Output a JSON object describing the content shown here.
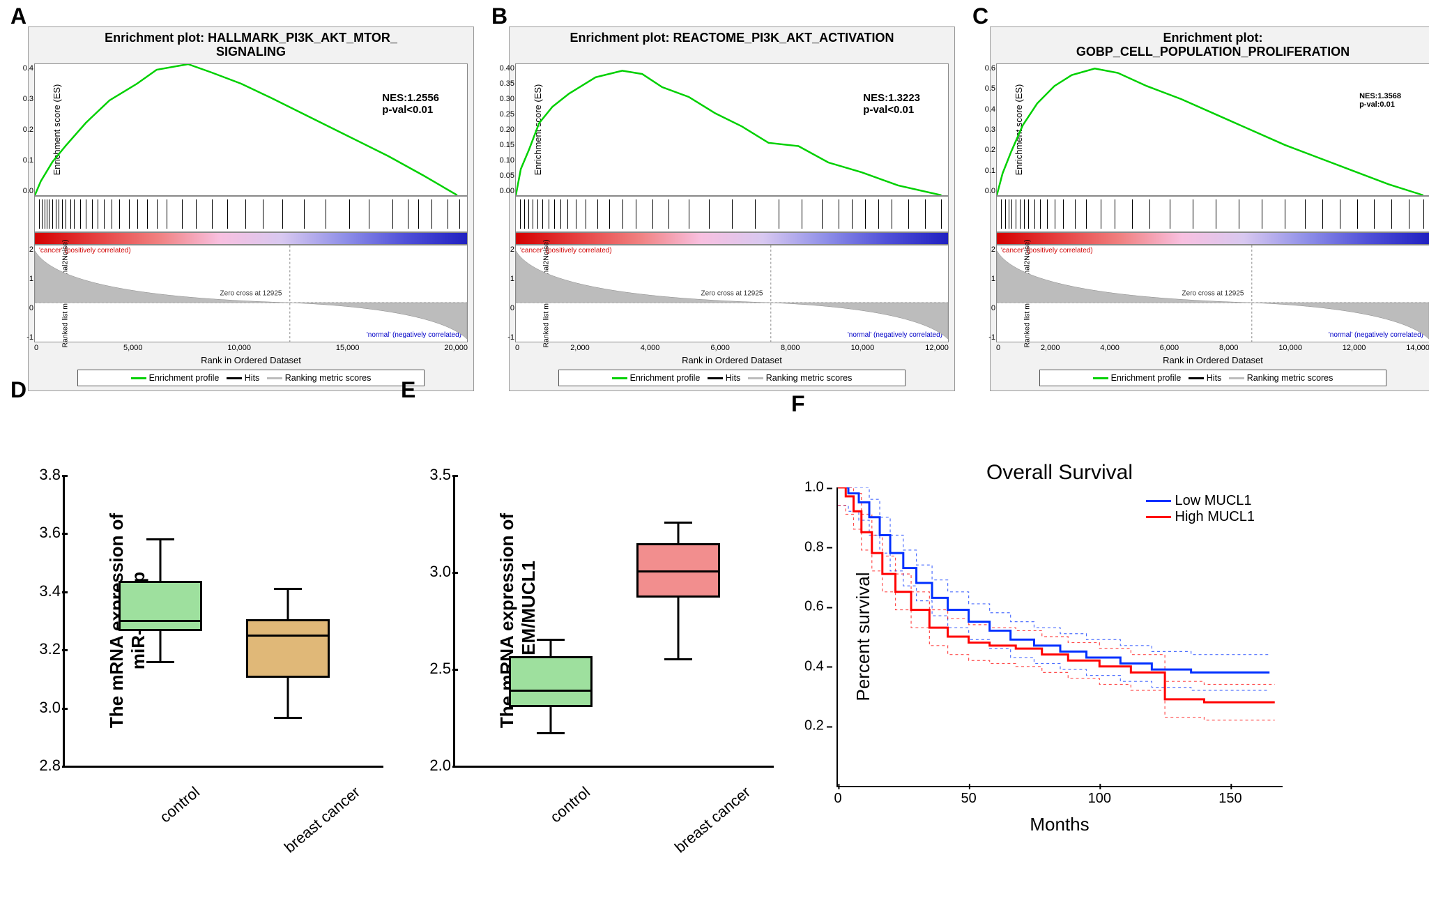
{
  "panels": {
    "A": {
      "label": "A"
    },
    "B": {
      "label": "B"
    },
    "C": {
      "label": "C"
    },
    "D": {
      "label": "D"
    },
    "E": {
      "label": "E"
    },
    "F": {
      "label": "F"
    }
  },
  "gsea_shared": {
    "es_ylabel": "Enrichment score (ES)",
    "rank_ylabel": "Ranked list metric (Signal2Noise)",
    "xlabel": "Rank in Ordered Dataset",
    "pos_label": "'cancer' (positively correlated)",
    "neg_label": "'normal' (negatively correlated)",
    "zero_label": "Zero cross at 12925",
    "legend_items": [
      "Enrichment profile",
      "Hits",
      "Ranking metric scores"
    ],
    "legend_colors": [
      "#00d000",
      "#000000",
      "#bcbcbc"
    ],
    "heat_gradient": [
      "#d40000",
      "#e64040",
      "#f08080",
      "#f8c0e0",
      "#d8c8f0",
      "#9090e8",
      "#5050d8",
      "#2020c0"
    ],
    "rank_yticks": [
      "-1",
      "0",
      "1",
      "2"
    ],
    "es_line_color": "#00d000",
    "rank_fill": "#bcbcbc",
    "grid_color": "#cccccc",
    "bg": "#f2f2f2"
  },
  "gsea": [
    {
      "id": "A",
      "title": "Enrichment plot: HALLMARK_PI3K_AKT_MTOR_\nSIGNALING",
      "nes": "NES:1.2556",
      "pval": "p-val<0.01",
      "es_yticks": [
        "0.0",
        "0.1",
        "0.2",
        "0.3",
        "0.4"
      ],
      "es_max": 0.47,
      "xticks": [
        "0",
        "5,000",
        "10,000",
        "15,000",
        "20,000"
      ],
      "xmax": 22000,
      "curve": [
        [
          0,
          0.0
        ],
        [
          300,
          0.05
        ],
        [
          900,
          0.12
        ],
        [
          1600,
          0.18
        ],
        [
          2600,
          0.26
        ],
        [
          3800,
          0.34
        ],
        [
          5200,
          0.4
        ],
        [
          6200,
          0.45
        ],
        [
          7800,
          0.47
        ],
        [
          9000,
          0.44
        ],
        [
          10500,
          0.4
        ],
        [
          12000,
          0.35
        ],
        [
          14000,
          0.28
        ],
        [
          16000,
          0.21
        ],
        [
          18000,
          0.14
        ],
        [
          19800,
          0.07
        ],
        [
          21500,
          0.0
        ]
      ],
      "hits": [
        200,
        350,
        480,
        600,
        720,
        900,
        1050,
        1200,
        1400,
        1550,
        1800,
        2000,
        2300,
        2600,
        2900,
        3200,
        3500,
        3900,
        4300,
        4800,
        5200,
        5700,
        6200,
        6700,
        7500,
        8200,
        9000,
        9800,
        10700,
        11600,
        12600,
        13700,
        14800,
        16000,
        17000,
        18200,
        19000,
        19500,
        20200,
        21000,
        21600
      ]
    },
    {
      "id": "B",
      "title": "Enrichment plot: REACTOME_PI3K_AKT_ACTIVATION",
      "nes": "NES:1.3223",
      "pval": "p-val<0.01",
      "es_yticks": [
        "0.00",
        "0.05",
        "0.10",
        "0.15",
        "0.20",
        "0.25",
        "0.30",
        "0.35",
        "0.40"
      ],
      "es_max": 0.4,
      "xticks": [
        "0",
        "2,000",
        "4,000",
        "6,000",
        "8,000",
        "10,000",
        "12,000"
      ],
      "xmax": 13000,
      "curve": [
        [
          0,
          0.0
        ],
        [
          150,
          0.08
        ],
        [
          400,
          0.14
        ],
        [
          700,
          0.22
        ],
        [
          1100,
          0.27
        ],
        [
          1600,
          0.31
        ],
        [
          2400,
          0.36
        ],
        [
          3200,
          0.38
        ],
        [
          3800,
          0.37
        ],
        [
          4400,
          0.33
        ],
        [
          5200,
          0.3
        ],
        [
          6000,
          0.25
        ],
        [
          6800,
          0.21
        ],
        [
          7600,
          0.16
        ],
        [
          8500,
          0.15
        ],
        [
          9400,
          0.1
        ],
        [
          10400,
          0.07
        ],
        [
          11500,
          0.03
        ],
        [
          12800,
          0.0
        ]
      ],
      "hits": [
        120,
        250,
        380,
        500,
        640,
        800,
        980,
        1150,
        1350,
        1550,
        1800,
        2100,
        2450,
        2800,
        3200,
        3600,
        4100,
        4600,
        5200,
        5800,
        6500,
        7200,
        7900,
        8600,
        9200,
        9700,
        10100,
        10500,
        10900,
        11300,
        11800,
        12300,
        12800
      ]
    },
    {
      "id": "C",
      "title": "Enrichment plot:\nGOBP_CELL_POPULATION_PROLIFERATION",
      "nes": "NES:1.3568",
      "pval": "p-val:0.01",
      "es_yticks": [
        "0.0",
        "0.1",
        "0.2",
        "0.3",
        "0.4",
        "0.5",
        "0.6"
      ],
      "es_max": 0.6,
      "xticks": [
        "0",
        "2,000",
        "4,000",
        "6,000",
        "8,000",
        "10,000",
        "12,000",
        "14,000"
      ],
      "xmax": 15000,
      "curve": [
        [
          0,
          0.0
        ],
        [
          200,
          0.1
        ],
        [
          500,
          0.2
        ],
        [
          900,
          0.32
        ],
        [
          1400,
          0.42
        ],
        [
          2000,
          0.5
        ],
        [
          2600,
          0.55
        ],
        [
          3400,
          0.58
        ],
        [
          4200,
          0.56
        ],
        [
          5200,
          0.5
        ],
        [
          6400,
          0.44
        ],
        [
          7600,
          0.37
        ],
        [
          8800,
          0.3
        ],
        [
          10000,
          0.23
        ],
        [
          11200,
          0.17
        ],
        [
          12400,
          0.11
        ],
        [
          13600,
          0.05
        ],
        [
          14800,
          0.0
        ]
      ],
      "hits": [
        150,
        280,
        400,
        520,
        650,
        800,
        950,
        1100,
        1300,
        1500,
        1750,
        2000,
        2300,
        2700,
        3100,
        3600,
        4100,
        4700,
        5300,
        6000,
        6800,
        7600,
        8400,
        9200,
        10000,
        10700,
        11300,
        11900,
        12500,
        13100,
        13700,
        14300,
        14800
      ]
    }
  ],
  "box_shared": {
    "categories": [
      "control",
      "breast cancer"
    ],
    "whisk_color": "#000000",
    "border_color": "#000000",
    "bg": "#ffffff",
    "label_fontsize": 26
  },
  "box": [
    {
      "id": "D",
      "ylabel": "The mRNA expression of\nmiR-186-5p",
      "ylim": [
        2.8,
        3.8
      ],
      "ytick_step": 0.2,
      "yticks": [
        "2.8",
        "3.0",
        "3.2",
        "3.4",
        "3.6",
        "3.8"
      ],
      "groups": [
        {
          "cat": "control",
          "fill": "#9ee09e",
          "min": 3.15,
          "q1": 3.26,
          "med": 3.29,
          "q3": 3.43,
          "max": 3.57
        },
        {
          "cat": "breast cancer",
          "fill": "#e0b878",
          "min": 2.96,
          "q1": 3.1,
          "med": 3.24,
          "q3": 3.3,
          "max": 3.4
        }
      ]
    },
    {
      "id": "E",
      "ylabel": "The mRNA expression of\nSBEM/MUCL1",
      "ylim": [
        2.0,
        3.5
      ],
      "ytick_step": 0.5,
      "yticks": [
        "2.0",
        "2.5",
        "3.0",
        "3.5"
      ],
      "groups": [
        {
          "cat": "control",
          "fill": "#9ee09e",
          "min": 2.16,
          "q1": 2.3,
          "med": 2.38,
          "q3": 2.56,
          "max": 2.64
        },
        {
          "cat": "breast cancer",
          "fill": "#f28e8e",
          "min": 2.54,
          "q1": 2.86,
          "med": 2.99,
          "q3": 3.14,
          "max": 3.24
        }
      ]
    }
  ],
  "survival": {
    "id": "F",
    "title": "Overall Survival",
    "ylabel": "Percent survival",
    "xlabel": "Months",
    "xlim": [
      0,
      170
    ],
    "ylim": [
      0,
      1.0
    ],
    "xticks": [
      "0",
      "50",
      "100",
      "150"
    ],
    "yticks": [
      "0.2",
      "0.4",
      "0.6",
      "0.8",
      "1.0"
    ],
    "legend": [
      {
        "label": "Low MUCL1",
        "color": "#0030ff"
      },
      {
        "label": "High MUCL1",
        "color": "#ff0000"
      }
    ],
    "low": [
      [
        0,
        1.0
      ],
      [
        4,
        0.98
      ],
      [
        8,
        0.95
      ],
      [
        12,
        0.9
      ],
      [
        16,
        0.84
      ],
      [
        20,
        0.78
      ],
      [
        25,
        0.73
      ],
      [
        30,
        0.68
      ],
      [
        36,
        0.63
      ],
      [
        42,
        0.59
      ],
      [
        50,
        0.55
      ],
      [
        58,
        0.52
      ],
      [
        66,
        0.49
      ],
      [
        75,
        0.47
      ],
      [
        85,
        0.45
      ],
      [
        95,
        0.43
      ],
      [
        108,
        0.41
      ],
      [
        120,
        0.39
      ],
      [
        135,
        0.38
      ],
      [
        150,
        0.38
      ],
      [
        165,
        0.38
      ]
    ],
    "high": [
      [
        0,
        1.0
      ],
      [
        3,
        0.97
      ],
      [
        6,
        0.92
      ],
      [
        9,
        0.85
      ],
      [
        13,
        0.78
      ],
      [
        17,
        0.71
      ],
      [
        22,
        0.65
      ],
      [
        28,
        0.59
      ],
      [
        35,
        0.53
      ],
      [
        42,
        0.5
      ],
      [
        50,
        0.48
      ],
      [
        58,
        0.47
      ],
      [
        68,
        0.46
      ],
      [
        78,
        0.44
      ],
      [
        88,
        0.42
      ],
      [
        100,
        0.4
      ],
      [
        112,
        0.38
      ],
      [
        125,
        0.29
      ],
      [
        140,
        0.28
      ],
      [
        155,
        0.28
      ],
      [
        167,
        0.28
      ]
    ],
    "ci_offset": 0.06
  }
}
